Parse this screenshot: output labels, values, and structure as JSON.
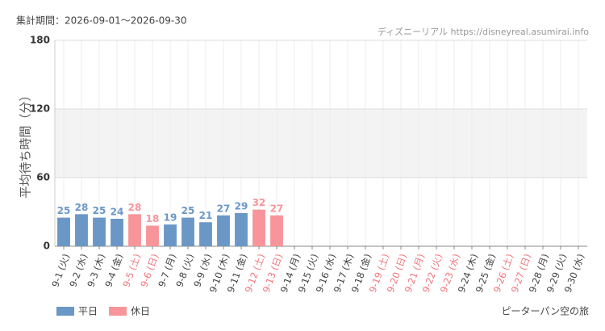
{
  "chart_data": {
    "type": "bar",
    "title": "集計期間：2026-09-01～2026-09-30",
    "source": "ディズニーリアル https://disneyreal.asumirai.info",
    "y_label": "平均待ち時間（分）",
    "footer": "ピーターパン空の旅",
    "categories": [
      "9-1 (火)",
      "9-2 (水)",
      "9-3 (木)",
      "9-4 (金)",
      "9-5 (土)",
      "9-6 (日)",
      "9-7 (月)",
      "9-8 (火)",
      "9-9 (水)",
      "9-10 (木)",
      "9-11 (金)",
      "9-12 (土)",
      "9-13 (日)",
      "9-14 (月)",
      "9-15 (火)",
      "9-16 (水)",
      "9-17 (木)",
      "9-18 (金)",
      "9-19 (土)",
      "9-20 (日)",
      "9-21 (月)",
      "9-22 (火)",
      "9-23 (水)",
      "9-24 (木)",
      "9-25 (金)",
      "9-26 (土)",
      "9-27 (日)",
      "9-28 (月)",
      "9-29 (火)",
      "9-30 (水)"
    ],
    "holiday_indices": [
      4,
      5,
      11,
      12,
      18,
      19,
      20,
      21,
      22,
      25,
      26
    ],
    "holiday_label_color": "#f0767c",
    "label_color": "#444444",
    "series": [
      {
        "name": "平日",
        "color": "#6b97c6",
        "values": [
          25,
          28,
          25,
          24,
          null,
          null,
          19,
          25,
          21,
          27,
          29,
          null,
          null,
          null,
          null,
          null,
          null,
          null,
          null,
          null,
          null,
          null,
          null,
          null,
          null,
          null,
          null,
          null,
          null,
          null
        ]
      },
      {
        "name": "休日",
        "color": "#f7959a",
        "values": [
          null,
          null,
          null,
          null,
          28,
          18,
          null,
          null,
          null,
          null,
          null,
          32,
          27,
          null,
          null,
          null,
          null,
          null,
          null,
          null,
          null,
          null,
          null,
          null,
          null,
          null,
          null,
          null,
          null,
          null
        ]
      }
    ],
    "ylim": [
      0,
      180
    ],
    "yticks": [
      0,
      60,
      120,
      180
    ],
    "band": [
      60,
      120
    ],
    "grid": true
  }
}
